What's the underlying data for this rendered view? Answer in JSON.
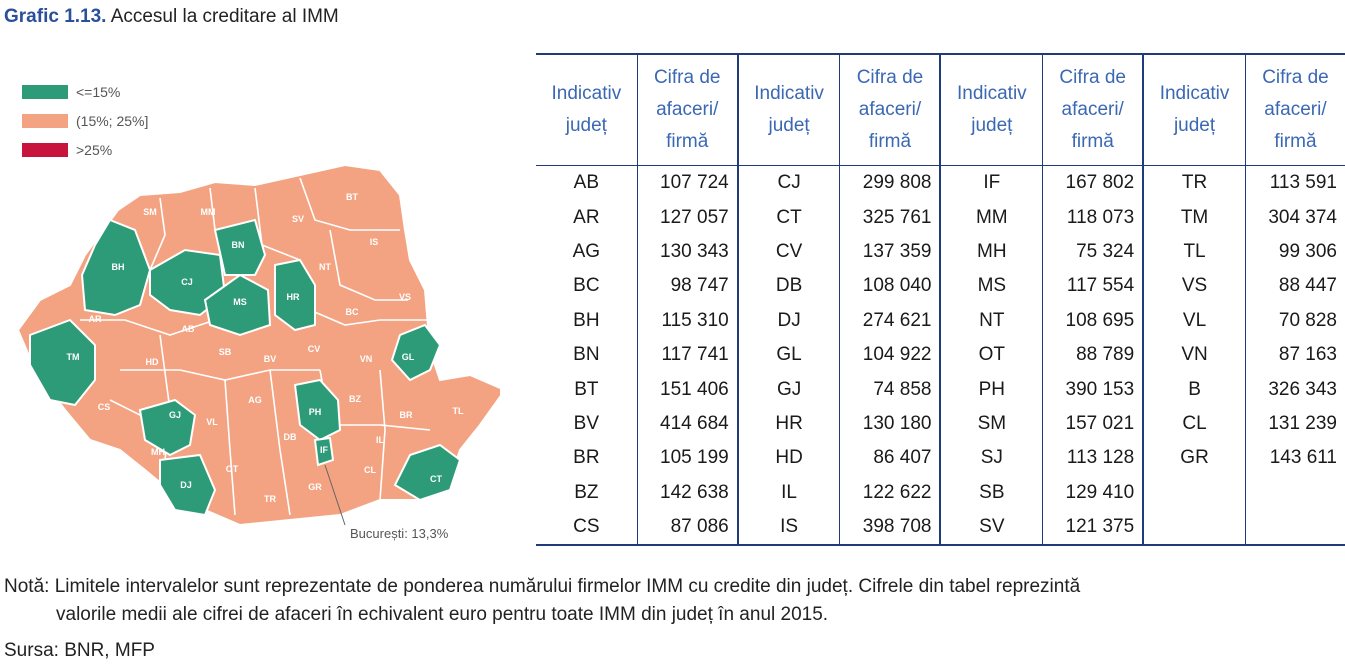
{
  "title": {
    "label": "Grafic 1.13.",
    "text": "Accesul la creditare al IMM"
  },
  "legend": [
    {
      "label": "<=15%",
      "color": "#2e9b78"
    },
    {
      "label": "(15%; 25%]",
      "color": "#f3a381"
    },
    {
      "label": ">25%",
      "color": "#c8143c"
    }
  ],
  "map": {
    "counties_low": [
      "BH",
      "CJ",
      "BN",
      "MS",
      "HR",
      "TM",
      "GL",
      "GJ",
      "PH",
      "IF",
      "DJ",
      "CT"
    ],
    "counties_mid": [
      "SM",
      "MM",
      "SV",
      "BT",
      "IS",
      "NT",
      "VS",
      "BC",
      "AR",
      "AB",
      "SB",
      "BV",
      "CV",
      "HD",
      "VN",
      "CS",
      "VL",
      "AG",
      "DB",
      "BZ",
      "BR",
      "TL",
      "IL",
      "CL",
      "OT",
      "TR",
      "GR",
      "MH"
    ],
    "callout": "București: 13,3%"
  },
  "table": {
    "headers": {
      "code": "Indicativ județ",
      "value": "Cifra de afaceri/ firmă"
    },
    "rows": [
      [
        "AB",
        "107 724",
        "CJ",
        "299 808",
        "IF",
        "167 802",
        "TR",
        "113 591"
      ],
      [
        "AR",
        "127 057",
        "CT",
        "325 761",
        "MM",
        "118 073",
        "TM",
        "304 374"
      ],
      [
        "AG",
        "130 343",
        "CV",
        "137 359",
        "MH",
        "75 324",
        "TL",
        "99 306"
      ],
      [
        "BC",
        "98 747",
        "DB",
        "108 040",
        "MS",
        "117 554",
        "VS",
        "88 447"
      ],
      [
        "BH",
        "115 310",
        "DJ",
        "274 621",
        "NT",
        "108 695",
        "VL",
        "70 828"
      ],
      [
        "BN",
        "117 741",
        "GL",
        "104 922",
        "OT",
        "88 789",
        "VN",
        "87 163"
      ],
      [
        "BT",
        "151 406",
        "GJ",
        "74 858",
        "PH",
        "390 153",
        "B",
        "326 343"
      ],
      [
        "BV",
        "414 684",
        "HR",
        "130 180",
        "SM",
        "157 021",
        "CL",
        "131 239"
      ],
      [
        "BR",
        "105 199",
        "HD",
        "86 407",
        "SJ",
        "113 128",
        "GR",
        "143 611"
      ],
      [
        "BZ",
        "142 638",
        "IL",
        "122 622",
        "SB",
        "129 410",
        "",
        ""
      ],
      [
        "CS",
        "87 086",
        "IS",
        "398 708",
        "SV",
        "121 375",
        "",
        ""
      ]
    ]
  },
  "note": {
    "prefix": "Notă:",
    "line1": "Limitele intervalelor sunt reprezentate de ponderea numărului firmelor IMM cu credite din județ. Cifrele din tabel reprezintă",
    "line2": "valorile medii ale cifrei de afaceri în echivalent euro pentru toate IMM din județ în anul 2015."
  },
  "source": "Sursa: BNR, MFP"
}
